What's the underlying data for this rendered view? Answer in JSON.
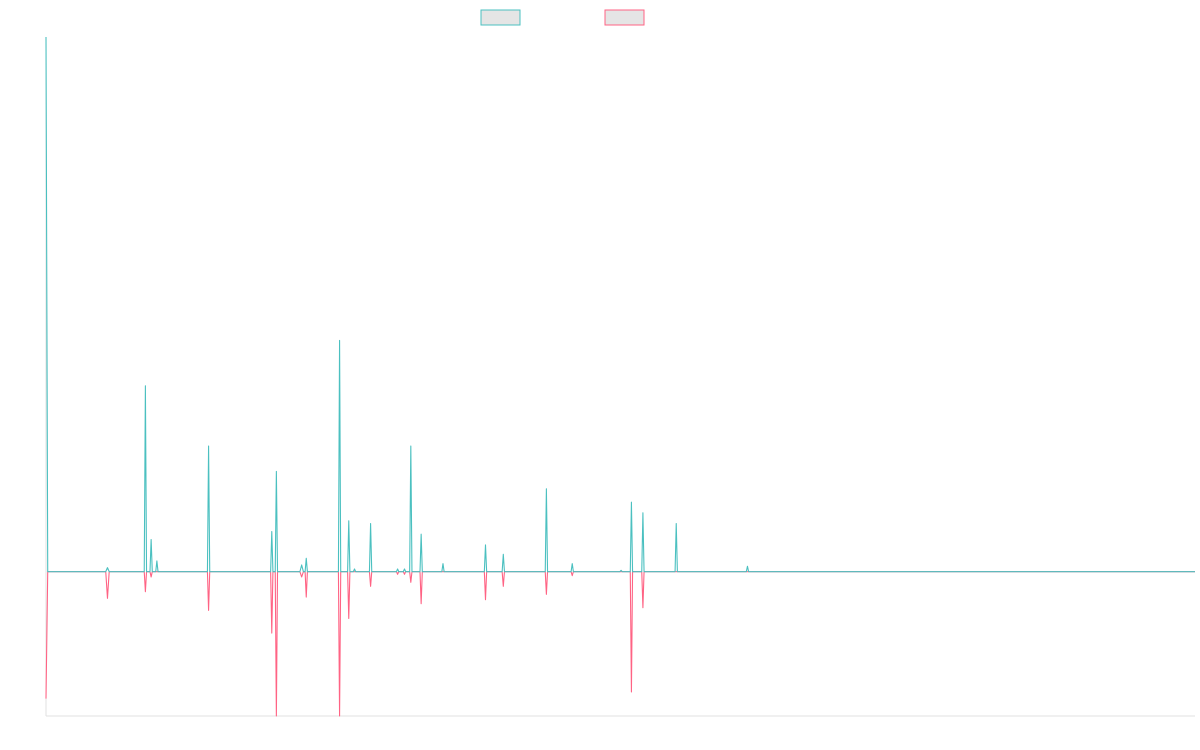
{
  "chart_data": {
    "type": "line",
    "title": "",
    "xlabel": "",
    "ylabel": "",
    "x_range": [
      0,
      1000
    ],
    "y_range": [
      -1.08,
      4.0
    ],
    "grid": false,
    "legend_position": "top-center",
    "series": [
      {
        "name": "",
        "color": "#4bc0c0",
        "fill": "#e5e5e5",
        "points": [
          [
            0,
            4.0
          ],
          [
            1.5,
            0
          ],
          [
            52,
            0
          ],
          [
            53.5,
            0.03
          ],
          [
            55,
            0
          ],
          [
            85.5,
            0
          ],
          [
            86.5,
            1.39
          ],
          [
            87.5,
            0
          ],
          [
            90.5,
            0
          ],
          [
            91.5,
            0.24
          ],
          [
            92.5,
            0
          ],
          [
            95.5,
            0
          ],
          [
            96.5,
            0.08
          ],
          [
            97.5,
            0
          ],
          [
            140.5,
            0
          ],
          [
            141.5,
            0.94
          ],
          [
            142.5,
            0
          ],
          [
            195.5,
            0
          ],
          [
            196.5,
            0.3
          ],
          [
            197.5,
            0
          ],
          [
            199.5,
            0
          ],
          [
            200.5,
            0.75
          ],
          [
            201.5,
            0
          ],
          [
            221,
            0
          ],
          [
            222.5,
            0.05
          ],
          [
            224,
            0
          ],
          [
            225.5,
            0
          ],
          [
            226.5,
            0.1
          ],
          [
            227.5,
            0
          ],
          [
            254.5,
            0
          ],
          [
            255.5,
            1.73
          ],
          [
            256.5,
            0
          ],
          [
            262.5,
            0
          ],
          [
            263.5,
            0.38
          ],
          [
            264.5,
            0
          ],
          [
            267.5,
            0
          ],
          [
            268.5,
            0.02
          ],
          [
            269.5,
            0
          ],
          [
            281.5,
            0
          ],
          [
            282.5,
            0.36
          ],
          [
            283.5,
            0
          ],
          [
            305,
            0
          ],
          [
            306,
            0.02
          ],
          [
            307,
            0
          ],
          [
            311,
            0
          ],
          [
            312,
            0.02
          ],
          [
            313,
            0
          ],
          [
            316.5,
            0
          ],
          [
            317.5,
            0.94
          ],
          [
            318.5,
            0
          ],
          [
            325.5,
            0
          ],
          [
            326.5,
            0.28
          ],
          [
            327.5,
            0
          ],
          [
            344.5,
            0
          ],
          [
            345.5,
            0.06
          ],
          [
            346.5,
            0
          ],
          [
            381.5,
            0
          ],
          [
            382.5,
            0.2
          ],
          [
            383.5,
            0
          ],
          [
            397,
            0
          ],
          [
            398,
            0.13
          ],
          [
            399,
            0
          ],
          [
            434.5,
            0
          ],
          [
            435.5,
            0.62
          ],
          [
            436.5,
            0
          ],
          [
            457,
            0
          ],
          [
            458,
            0.06
          ],
          [
            459,
            0
          ],
          [
            499.5,
            0
          ],
          [
            500.5,
            0.01
          ],
          [
            501.5,
            0
          ],
          [
            508.5,
            0
          ],
          [
            509.5,
            0.52
          ],
          [
            510.5,
            0
          ],
          [
            518.5,
            0
          ],
          [
            519.5,
            0.44
          ],
          [
            520.5,
            0
          ],
          [
            547.5,
            0
          ],
          [
            548.5,
            0.36
          ],
          [
            549.5,
            0
          ],
          [
            609.5,
            0
          ],
          [
            610.5,
            0.04
          ],
          [
            611.5,
            0
          ],
          [
            1000,
            0
          ]
        ]
      },
      {
        "name": "",
        "color": "#ff6384",
        "fill": "#e5e5e5",
        "points": [
          [
            0,
            -0.95
          ],
          [
            1.5,
            0
          ],
          [
            52,
            0
          ],
          [
            53.5,
            -0.2
          ],
          [
            55,
            0
          ],
          [
            85.5,
            0
          ],
          [
            86.5,
            -0.15
          ],
          [
            87.5,
            0
          ],
          [
            90.5,
            0
          ],
          [
            91.5,
            -0.04
          ],
          [
            92.5,
            0
          ],
          [
            140.5,
            0
          ],
          [
            141.5,
            -0.29
          ],
          [
            142.5,
            0
          ],
          [
            195.5,
            0
          ],
          [
            196.5,
            -0.46
          ],
          [
            197.5,
            0
          ],
          [
            199.5,
            0
          ],
          [
            200.5,
            -1.08
          ],
          [
            201.5,
            0
          ],
          [
            221,
            0
          ],
          [
            222.5,
            -0.04
          ],
          [
            224,
            0
          ],
          [
            225.5,
            0
          ],
          [
            226.5,
            -0.19
          ],
          [
            227.5,
            0
          ],
          [
            254.5,
            0
          ],
          [
            255.5,
            -1.08
          ],
          [
            256.5,
            0
          ],
          [
            262.5,
            0
          ],
          [
            263.5,
            -0.35
          ],
          [
            264.5,
            0
          ],
          [
            281.5,
            0
          ],
          [
            282.5,
            -0.11
          ],
          [
            283.5,
            0
          ],
          [
            305,
            0
          ],
          [
            306,
            -0.02
          ],
          [
            307,
            0
          ],
          [
            311,
            0
          ],
          [
            312,
            -0.02
          ],
          [
            313,
            0
          ],
          [
            316.5,
            0
          ],
          [
            317.5,
            -0.08
          ],
          [
            318.5,
            0
          ],
          [
            325.5,
            0
          ],
          [
            326.5,
            -0.24
          ],
          [
            327.5,
            0
          ],
          [
            381.5,
            0
          ],
          [
            382.5,
            -0.21
          ],
          [
            383.5,
            0
          ],
          [
            397,
            0
          ],
          [
            398,
            -0.11
          ],
          [
            399,
            0
          ],
          [
            434.5,
            0
          ],
          [
            435.5,
            -0.17
          ],
          [
            436.5,
            0
          ],
          [
            457,
            0
          ],
          [
            458,
            -0.03
          ],
          [
            459,
            0
          ],
          [
            508.5,
            0
          ],
          [
            509.5,
            -0.9
          ],
          [
            510.5,
            0
          ],
          [
            518.5,
            0
          ],
          [
            519.5,
            -0.27
          ],
          [
            520.5,
            0
          ],
          [
            1000,
            0
          ]
        ]
      }
    ]
  }
}
